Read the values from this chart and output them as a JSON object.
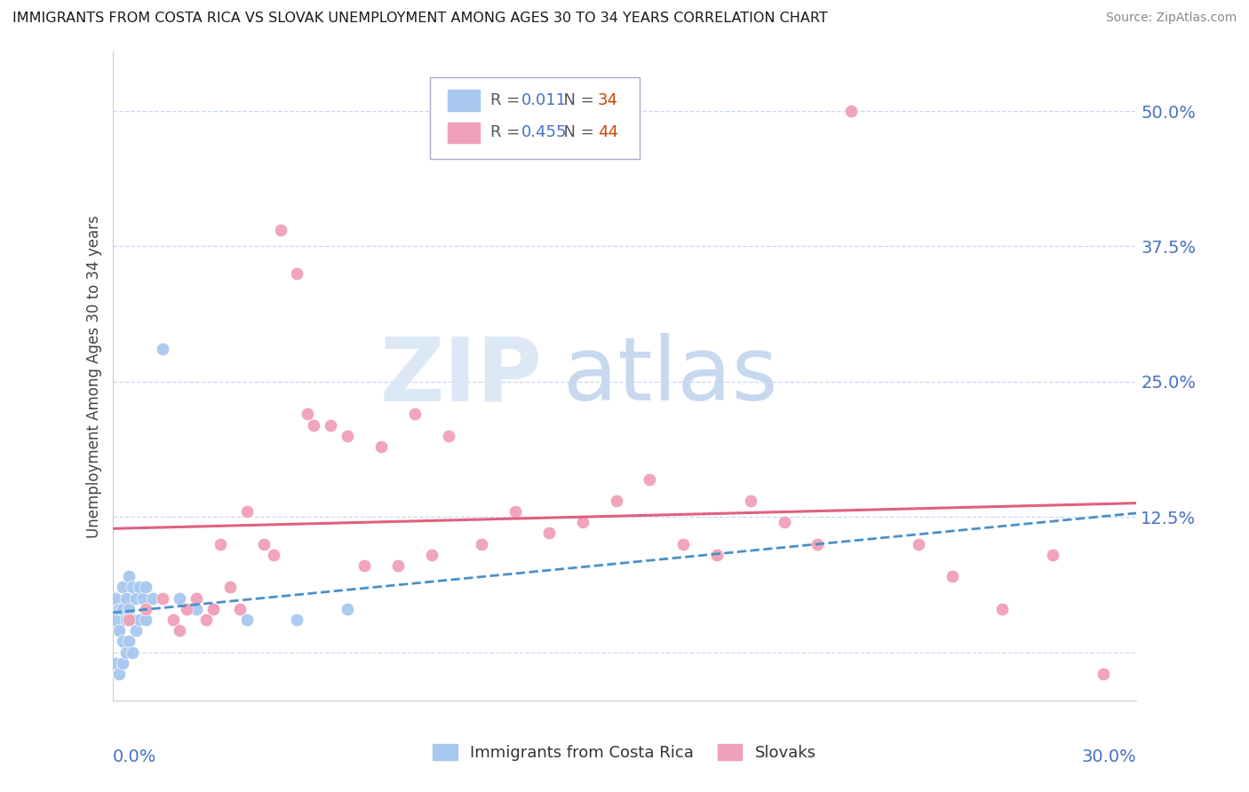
{
  "title": "IMMIGRANTS FROM COSTA RICA VS SLOVAK UNEMPLOYMENT AMONG AGES 30 TO 34 YEARS CORRELATION CHART",
  "source": "Source: ZipAtlas.com",
  "ylabel_text": "Unemployment Among Ages 30 to 34 years",
  "legend_1_label": "Immigrants from Costa Rica",
  "legend_1_R": "0.011",
  "legend_1_N": "34",
  "legend_2_label": "Slovaks",
  "legend_2_R": "0.455",
  "legend_2_N": "44",
  "xlim": [
    0.0,
    0.305
  ],
  "ylim": [
    -0.045,
    0.555
  ],
  "yticks": [
    0.0,
    0.125,
    0.25,
    0.375,
    0.5
  ],
  "ytick_labels": [
    "",
    "12.5%",
    "25.0%",
    "37.5%",
    "50.0%"
  ],
  "xtick_labels": [
    "0.0%",
    "30.0%"
  ],
  "color_cr": "#a8c8f0",
  "color_sk": "#f0a0b8",
  "color_cr_line": "#4a90c8",
  "color_sk_line": "#e06080",
  "color_axis_text": "#4472c4",
  "color_grid": "#c8d8f0",
  "color_watermark": "#dce8f5",
  "color_title": "#1a1a1a",
  "color_source": "#888888",
  "cr_x": [
    0.001,
    0.001,
    0.001,
    0.002,
    0.002,
    0.002,
    0.003,
    0.003,
    0.003,
    0.003,
    0.004,
    0.004,
    0.004,
    0.005,
    0.005,
    0.005,
    0.006,
    0.006,
    0.006,
    0.007,
    0.007,
    0.008,
    0.008,
    0.009,
    0.01,
    0.01,
    0.012,
    0.015,
    0.02,
    0.025,
    0.03,
    0.04,
    0.055,
    0.07
  ],
  "cr_y": [
    0.05,
    0.03,
    -0.01,
    0.04,
    0.02,
    -0.02,
    0.06,
    0.04,
    0.01,
    -0.01,
    0.05,
    0.03,
    0.0,
    0.07,
    0.04,
    0.01,
    0.06,
    0.03,
    0.0,
    0.05,
    0.02,
    0.06,
    0.03,
    0.05,
    0.06,
    0.03,
    0.05,
    0.28,
    0.05,
    0.04,
    0.04,
    0.03,
    0.03,
    0.04
  ],
  "sk_x": [
    0.005,
    0.01,
    0.015,
    0.018,
    0.02,
    0.022,
    0.025,
    0.028,
    0.03,
    0.032,
    0.035,
    0.038,
    0.04,
    0.045,
    0.048,
    0.05,
    0.055,
    0.058,
    0.06,
    0.065,
    0.07,
    0.075,
    0.08,
    0.085,
    0.09,
    0.095,
    0.1,
    0.11,
    0.12,
    0.13,
    0.14,
    0.15,
    0.16,
    0.17,
    0.18,
    0.19,
    0.2,
    0.21,
    0.22,
    0.24,
    0.25,
    0.265,
    0.28,
    0.295
  ],
  "sk_y": [
    0.03,
    0.04,
    0.05,
    0.03,
    0.02,
    0.04,
    0.05,
    0.03,
    0.04,
    0.1,
    0.06,
    0.04,
    0.13,
    0.1,
    0.09,
    0.39,
    0.35,
    0.22,
    0.21,
    0.21,
    0.2,
    0.08,
    0.19,
    0.08,
    0.22,
    0.09,
    0.2,
    0.1,
    0.13,
    0.11,
    0.12,
    0.14,
    0.16,
    0.1,
    0.09,
    0.14,
    0.12,
    0.1,
    0.5,
    0.1,
    0.07,
    0.04,
    0.09,
    -0.02
  ]
}
